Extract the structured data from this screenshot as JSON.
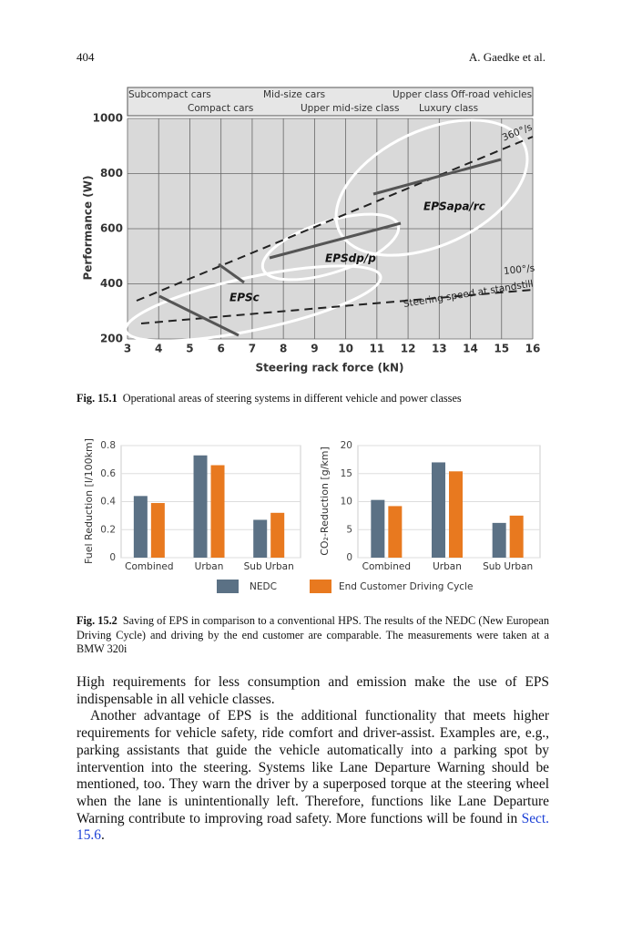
{
  "header": {
    "page_number": "404",
    "authors": "A. Gaedke et al."
  },
  "chart_data": [
    {
      "type": "diagram",
      "x_label": "Steering rack force  (kN)",
      "y_label": "Performance (W)",
      "xlim": [
        3,
        16
      ],
      "xticks": [
        3,
        4,
        5,
        6,
        7,
        8,
        9,
        10,
        11,
        12,
        13,
        14,
        15,
        16
      ],
      "ylim": [
        200,
        1000
      ],
      "yticks": [
        200,
        400,
        600,
        800,
        1000
      ],
      "grid": true,
      "vehicle_classes": [
        "Subcompact cars",
        "Mid-size cars",
        "Upper class",
        "Off-road vehicles",
        "Compact cars",
        "Upper mid-size class",
        "Luxury class"
      ],
      "areas": [
        "EPSc",
        "EPSdp/p",
        "EPSapa/rc"
      ],
      "speed_lines": [
        "360°/s",
        "100°/s"
      ],
      "speed_note": "Steering speed at standstill"
    },
    {
      "type": "bar",
      "y_label": "Fuel Reduction [l/100km]",
      "categories": [
        "Combined",
        "Urban",
        "Sub Urban"
      ],
      "series": [
        {
          "name": "NEDC",
          "color": "#5b7185",
          "values": [
            0.44,
            0.73,
            0.27
          ]
        },
        {
          "name": "End Customer Driving Cycle",
          "color": "#e8791f",
          "values": [
            0.39,
            0.66,
            0.32
          ]
        }
      ],
      "ylim": [
        0,
        0.8
      ],
      "yticks": [
        0,
        0.2,
        0.4,
        0.6,
        0.8
      ],
      "grid": true
    },
    {
      "type": "bar",
      "y_label": "CO₂-Reduction [g/km]",
      "categories": [
        "Combined",
        "Urban",
        "Sub Urban"
      ],
      "series": [
        {
          "name": "NEDC",
          "color": "#5b7185",
          "values": [
            10.3,
            17.0,
            6.2
          ]
        },
        {
          "name": "End Customer Driving Cycle",
          "color": "#e8791f",
          "values": [
            9.2,
            15.4,
            7.5
          ]
        }
      ],
      "ylim": [
        0,
        20
      ],
      "yticks": [
        0,
        5,
        10,
        15,
        20
      ],
      "grid": true
    }
  ],
  "captions": [
    {
      "label": "Fig. 15.1",
      "text": "Operational areas of steering systems in different vehicle and power classes"
    },
    {
      "label": "Fig. 15.2",
      "text": "Saving of EPS in comparison to a conventional HPS. The results of the NEDC (New European Driving Cycle) and driving by the end customer are comparable. The measurements were taken at a BMW 320i"
    }
  ],
  "body": {
    "paragraphs": [
      {
        "text": "High requirements for less consumption and emission make the use of EPS indispensable in all vehicle classes."
      },
      {
        "text": "Another advantage of EPS is the additional functionality that meets higher requirements for vehicle safety, ride comfort and driver-assist. Examples are, e.g., parking assistants that guide the vehicle automatically into a parking spot by intervention into the steering. Systems like Lane Departure Warning should be mentioned, too. They warn the driver by a superposed torque at the steering wheel when the lane is unintentionally left. Therefore, functions like Lane Departure Warning contribute to improving road safety. More functions will be found in ",
        "link": "Sect. 15.6",
        "end": "."
      }
    ]
  }
}
